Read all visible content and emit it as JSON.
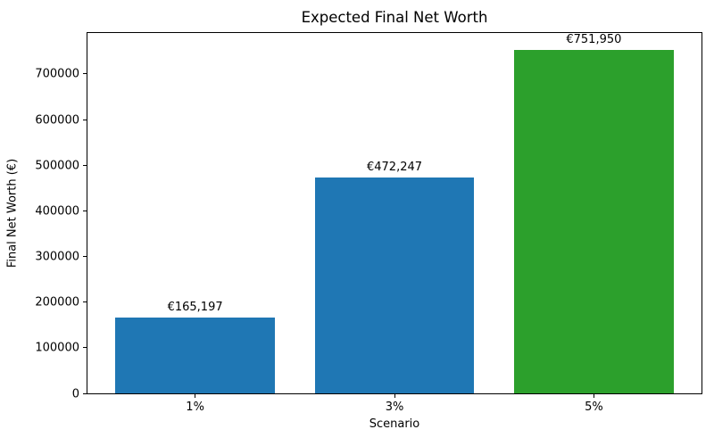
{
  "chart_data": {
    "type": "bar",
    "title": "Expected Final Net Worth",
    "xlabel": "Scenario",
    "ylabel": "Final Net Worth (€)",
    "categories": [
      "1%",
      "3%",
      "5%"
    ],
    "values": [
      165197,
      472247,
      751950
    ],
    "bar_labels": [
      "€165,197",
      "€472,247",
      "€751,950"
    ],
    "bar_colors": [
      "#1f77b4",
      "#1f77b4",
      "#2ca02c"
    ],
    "yticks": [
      0,
      100000,
      200000,
      300000,
      400000,
      500000,
      600000,
      700000
    ],
    "ytick_labels": [
      "0",
      "100000",
      "200000",
      "300000",
      "400000",
      "500000",
      "600000",
      "700000"
    ],
    "ylim": [
      0,
      789548
    ],
    "xlim": [
      -0.54,
      2.54
    ],
    "bar_width_units": 0.8,
    "grid": false,
    "legend_position": "none",
    "background_color": "#ffffff",
    "text_color": "#000000",
    "spine_color": "#000000"
  }
}
